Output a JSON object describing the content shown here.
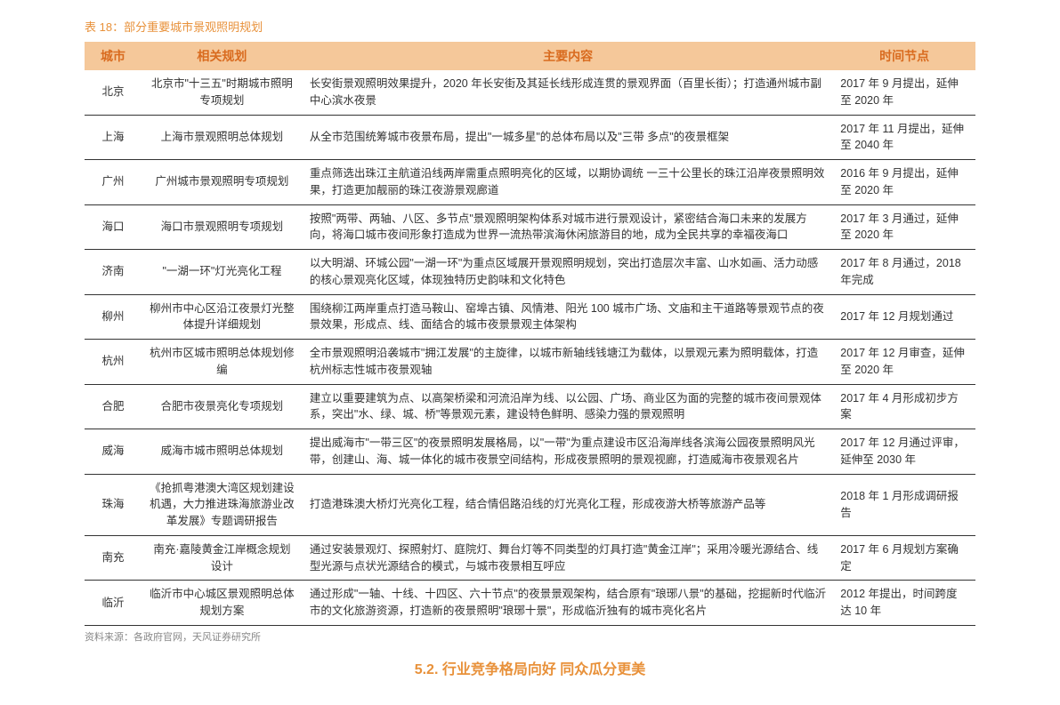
{
  "title": "表 18：部分重要城市景观照明规划",
  "headers": {
    "city": "城市",
    "plan": "相关规划",
    "content": "主要内容",
    "time": "时间节点"
  },
  "rows": [
    {
      "city": "北京",
      "plan": "北京市\"十三五\"时期城市照明专项规划",
      "content": "长安街景观照明效果提升，2020 年长安街及其延长线形成连贯的景观界面（百里长街）；打造通州城市副中心滨水夜景",
      "time": "2017 年 9 月提出，延伸至 2020 年"
    },
    {
      "city": "上海",
      "plan": "上海市景观照明总体规划",
      "content": "从全市范围统筹城市夜景布局，提出\"一城多星\"的总体布局以及\"三带 多点\"的夜景框架",
      "time": "2017 年 11 月提出，延伸至 2040 年"
    },
    {
      "city": "广州",
      "plan": "广州城市景观照明专项规划",
      "content": "重点筛选出珠江主航道沿线两岸需重点照明亮化的区域，以期协调统 一三十公里长的珠江沿岸夜景照明效果，打造更加靓丽的珠江夜游景观廊道",
      "time": "2016 年 9 月提出，延伸至 2020 年"
    },
    {
      "city": "海口",
      "plan": "海口市景观照明专项规划",
      "content": "按照\"两带、两轴、八区、多节点\"景观照明架构体系对城市进行景观设计，紧密结合海口未来的发展方向，将海口城市夜间形象打造成为世界一流热带滨海休闲旅游目的地，成为全民共享的幸福夜海口",
      "time": "2017 年 3 月通过，延伸至 2020 年"
    },
    {
      "city": "济南",
      "plan": "\"一湖一环\"灯光亮化工程",
      "content": "以大明湖、环城公园\"一湖一环\"为重点区域展开景观照明规划，突出打造层次丰富、山水如画、活力动感的核心景观亮化区域，体现独特历史韵味和文化特色",
      "time": "2017 年 8 月通过，2018 年完成"
    },
    {
      "city": "柳州",
      "plan": "柳州市中心区沿江夜景灯光整体提升详细规划",
      "content": "围绕柳江两岸重点打造马鞍山、窑埠古镇、风情港、阳光 100 城市广场、文庙和主干道路等景观节点的夜景效果，形成点、线、面结合的城市夜景景观主体架构",
      "time": "2017 年 12 月规划通过"
    },
    {
      "city": "杭州",
      "plan": "杭州市区城市照明总体规划修编",
      "content": "全市景观照明沿袭城市\"拥江发展\"的主旋律，以城市新轴线钱塘江为载体，以景观元素为照明载体，打造杭州标志性城市夜景观轴",
      "time": "2017 年 12 月审查，延伸至 2020 年"
    },
    {
      "city": "合肥",
      "plan": "合肥市夜景亮化专项规划",
      "content": "建立以重要建筑为点、以高架桥梁和河流沿岸为线、以公园、广场、商业区为面的完整的城市夜间景观体系，突出\"水、绿、城、桥\"等景观元素，建设特色鲜明、感染力强的景观照明",
      "time": "2017 年 4 月形成初步方案"
    },
    {
      "city": "威海",
      "plan": "威海市城市照明总体规划",
      "content": "提出威海市\"一带三区\"的夜景照明发展格局，以\"一带\"为重点建设市区沿海岸线各滨海公园夜景照明风光带，创建山、海、城一体化的城市夜景空间结构，形成夜景照明的景观视廊，打造威海市夜景观名片",
      "time": "2017 年 12 月通过评审，延伸至 2030 年"
    },
    {
      "city": "珠海",
      "plan": "《抢抓粤港澳大湾区规划建设机遇，大力推进珠海旅游业改革发展》专题调研报告",
      "content": "打造港珠澳大桥灯光亮化工程，结合情侣路沿线的灯光亮化工程，形成夜游大桥等旅游产品等",
      "time": "2018 年 1 月形成调研报告"
    },
    {
      "city": "南充",
      "plan": "南充·嘉陵黄金江岸概念规划设计",
      "content": "通过安装景观灯、探照射灯、庭院灯、舞台灯等不同类型的灯具打造\"黄金江岸\"；采用冷暖光源结合、线型光源与点状光源结合的模式，与城市夜景相互呼应",
      "time": "2017 年 6 月规划方案确定"
    },
    {
      "city": "临沂",
      "plan": "临沂市中心城区景观照明总体规划方案",
      "content": "通过形成\"一轴、十线、十四区、六十节点\"的夜景景观架构，结合原有\"琅琊八景\"的基础，挖掘新时代临沂市的文化旅游资源，打造新的夜景照明\"琅琊十景\"，形成临沂独有的城市亮化名片",
      "time": "2012 年提出，时间跨度达 10 年"
    }
  ],
  "source": "资料来源：各政府官网，天风证券研究所",
  "bottom": "5.2. 行业竞争格局向好   同众瓜分更美",
  "colors": {
    "accent": "#e8913a",
    "header_bg": "#f5c89a",
    "header_text": "#d96b1f",
    "border": "#333333",
    "source_text": "#888888"
  }
}
